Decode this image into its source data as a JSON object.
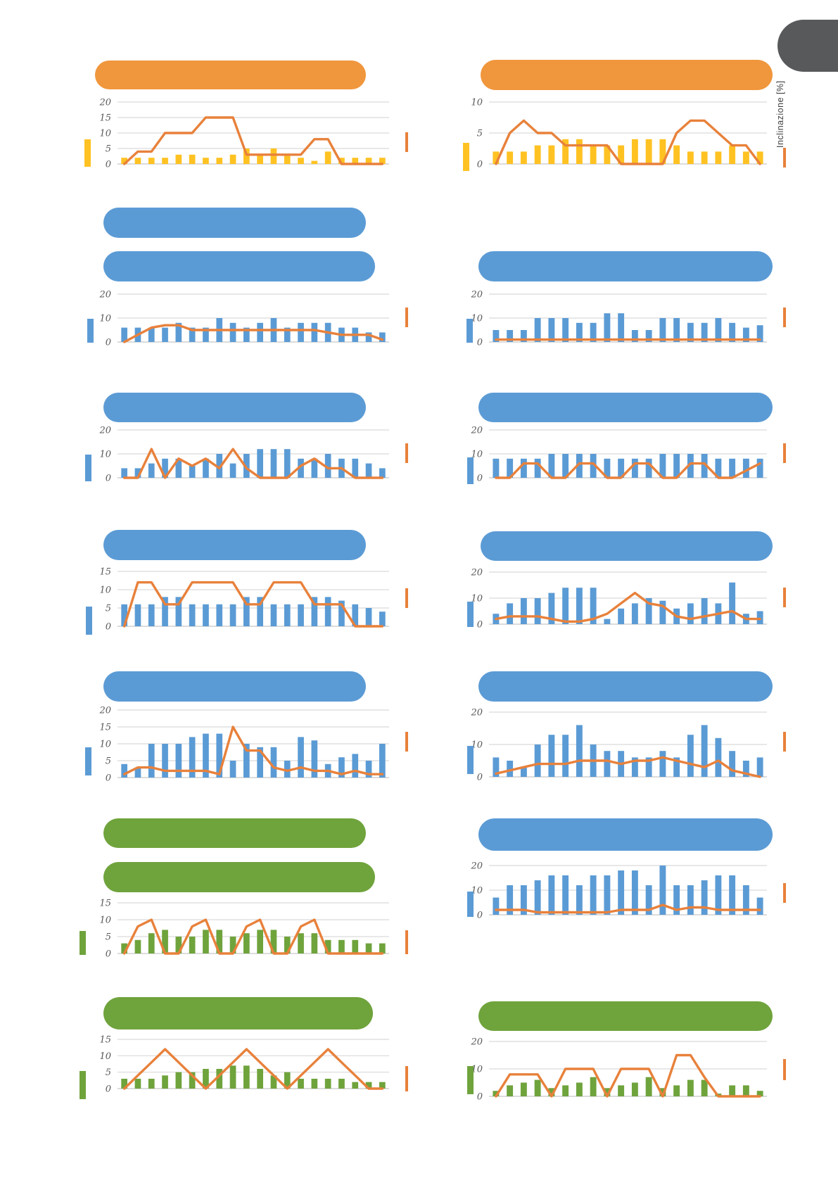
{
  "document": {
    "right_axis_label": "Inclinazione [%]",
    "note_header_pills_are_blank": true
  },
  "palette": {
    "orange_line": "#E8813B",
    "pill_orange": "#F0963C",
    "yellow": "#FFC222",
    "blue": "#5B9BD5",
    "green": "#6FA33C",
    "pill_blue": "#5B9BD5",
    "pill_green": "#6FA33C",
    "grid": "#D9D9D9",
    "grid_zero": "#C6C6C6",
    "axis_text": "#595959",
    "tab_gray": "#58595B",
    "page_bg": "#FFFFFF"
  },
  "chart_data": [
    {
      "id": "profile-r1-left",
      "type": "bar+line",
      "title": "",
      "header_pills": [
        "orange"
      ],
      "bar_color": "yellow",
      "ylim": [
        0,
        20
      ],
      "yticks": [
        20,
        15,
        10,
        5,
        0
      ],
      "grid": true,
      "series": [
        {
          "name": "bars",
          "type": "bar",
          "values": [
            2,
            2,
            2,
            2,
            3,
            3,
            2,
            2,
            3,
            5,
            3,
            5,
            3,
            2,
            1,
            4,
            2,
            2,
            2,
            2
          ]
        },
        {
          "name": "inclinazione",
          "type": "line",
          "values": [
            0,
            4,
            4,
            10,
            10,
            10,
            15,
            15,
            15,
            3,
            3,
            3,
            3,
            3,
            8,
            8,
            0,
            0,
            0,
            0
          ]
        }
      ]
    },
    {
      "id": "profile-r1-right",
      "type": "bar+line",
      "title": "",
      "header_pills": [
        "orange"
      ],
      "bar_color": "yellow",
      "ylim": [
        0,
        10
      ],
      "yticks": [
        10,
        5,
        0
      ],
      "grid": true,
      "series": [
        {
          "name": "bars",
          "type": "bar",
          "values": [
            2,
            2,
            2,
            3,
            3,
            4,
            4,
            3,
            3,
            3,
            4,
            4,
            4,
            3,
            2,
            2,
            2,
            3,
            2,
            2
          ]
        },
        {
          "name": "inclinazione",
          "type": "line",
          "values": [
            0,
            5,
            7,
            5,
            5,
            3,
            3,
            3,
            3,
            0,
            0,
            0,
            0,
            5,
            7,
            7,
            5,
            3,
            3,
            0
          ]
        }
      ]
    },
    {
      "id": "profile-r2-left",
      "type": "bar+line",
      "title": "",
      "header_pills": [
        "blue",
        "blue"
      ],
      "bar_color": "blue",
      "ylim": [
        0,
        20
      ],
      "yticks": [
        20,
        10,
        0
      ],
      "grid": true,
      "series": [
        {
          "name": "bars",
          "type": "bar",
          "values": [
            6,
            6,
            6,
            6,
            8,
            6,
            6,
            10,
            8,
            6,
            8,
            10,
            6,
            8,
            8,
            8,
            6,
            6,
            4,
            4
          ]
        },
        {
          "name": "inclinazione",
          "type": "line",
          "values": [
            0,
            3,
            6,
            7,
            7,
            5,
            5,
            5,
            5,
            5,
            5,
            5,
            5,
            5,
            5,
            4,
            3,
            3,
            3,
            1
          ]
        }
      ]
    },
    {
      "id": "profile-r2-right",
      "type": "bar+line",
      "title": "",
      "header_pills": [
        "blue"
      ],
      "bar_color": "blue",
      "ylim": [
        0,
        20
      ],
      "yticks": [
        20,
        10,
        0
      ],
      "grid": true,
      "series": [
        {
          "name": "bars",
          "type": "bar",
          "values": [
            5,
            5,
            5,
            10,
            10,
            10,
            8,
            8,
            12,
            12,
            5,
            5,
            10,
            10,
            8,
            8,
            10,
            8,
            6,
            7
          ]
        },
        {
          "name": "inclinazione",
          "type": "line",
          "values": [
            1,
            1,
            1,
            1,
            1,
            1,
            1,
            1,
            1,
            1,
            1,
            1,
            1,
            1,
            1,
            1,
            1,
            1,
            1,
            1
          ]
        }
      ]
    },
    {
      "id": "profile-r3-left",
      "type": "bar+line",
      "title": "",
      "header_pills": [
        "blue"
      ],
      "bar_color": "blue",
      "ylim": [
        0,
        20
      ],
      "yticks": [
        20,
        10,
        0
      ],
      "grid": true,
      "series": [
        {
          "name": "bars",
          "type": "bar",
          "values": [
            4,
            4,
            6,
            8,
            8,
            5,
            8,
            10,
            6,
            10,
            12,
            12,
            12,
            8,
            8,
            10,
            8,
            8,
            6,
            4
          ]
        },
        {
          "name": "inclinazione",
          "type": "line",
          "values": [
            0,
            0,
            12,
            0,
            8,
            5,
            8,
            4,
            12,
            4,
            0,
            0,
            0,
            5,
            8,
            4,
            4,
            0,
            0,
            0
          ]
        }
      ]
    },
    {
      "id": "profile-r3-right",
      "type": "bar+line",
      "title": "",
      "header_pills": [
        "blue"
      ],
      "bar_color": "blue",
      "ylim": [
        0,
        20
      ],
      "yticks": [
        20,
        10,
        0
      ],
      "grid": true,
      "series": [
        {
          "name": "bars",
          "type": "bar",
          "values": [
            8,
            8,
            8,
            8,
            10,
            10,
            10,
            10,
            8,
            8,
            8,
            8,
            10,
            10,
            10,
            10,
            8,
            8,
            8,
            8
          ]
        },
        {
          "name": "inclinazione",
          "type": "line",
          "values": [
            0,
            0,
            6,
            6,
            0,
            0,
            6,
            6,
            0,
            0,
            6,
            6,
            0,
            0,
            6,
            6,
            0,
            0,
            3,
            6
          ]
        }
      ]
    },
    {
      "id": "profile-r4-left",
      "type": "bar+line",
      "title": "",
      "header_pills": [
        "blue"
      ],
      "bar_color": "blue",
      "ylim": [
        0,
        15
      ],
      "yticks": [
        15,
        10,
        5,
        0
      ],
      "grid": true,
      "series": [
        {
          "name": "bars",
          "type": "bar",
          "values": [
            6,
            6,
            6,
            8,
            8,
            6,
            6,
            6,
            6,
            8,
            8,
            6,
            6,
            6,
            8,
            8,
            7,
            6,
            5,
            4
          ]
        },
        {
          "name": "inclinazione",
          "type": "line",
          "values": [
            0,
            12,
            12,
            6,
            6,
            12,
            12,
            12,
            12,
            6,
            6,
            12,
            12,
            12,
            6,
            6,
            6,
            0,
            0,
            0
          ]
        }
      ]
    },
    {
      "id": "profile-r4-right",
      "type": "bar+line",
      "title": "",
      "header_pills": [
        "blue"
      ],
      "bar_color": "blue",
      "ylim": [
        0,
        20
      ],
      "yticks": [
        20,
        10,
        0
      ],
      "grid": true,
      "series": [
        {
          "name": "bars",
          "type": "bar",
          "values": [
            4,
            8,
            10,
            10,
            12,
            14,
            14,
            14,
            2,
            6,
            8,
            10,
            9,
            6,
            8,
            10,
            8,
            16,
            4,
            5
          ]
        },
        {
          "name": "inclinazione",
          "type": "line",
          "values": [
            2,
            3,
            3,
            3,
            2,
            1,
            1,
            2,
            4,
            8,
            12,
            8,
            7,
            3,
            2,
            3,
            4,
            5,
            2,
            2
          ]
        }
      ]
    },
    {
      "id": "profile-r5-left",
      "type": "bar+line",
      "title": "",
      "header_pills": [
        "blue"
      ],
      "bar_color": "blue",
      "ylim": [
        0,
        20
      ],
      "yticks": [
        20,
        15,
        10,
        5,
        0
      ],
      "grid": true,
      "series": [
        {
          "name": "bars",
          "type": "bar",
          "values": [
            4,
            3,
            10,
            10,
            10,
            12,
            13,
            13,
            5,
            10,
            9,
            9,
            5,
            12,
            11,
            4,
            6,
            7,
            5,
            10
          ]
        },
        {
          "name": "inclinazione",
          "type": "line",
          "values": [
            1,
            3,
            3,
            2,
            2,
            2,
            2,
            1,
            15,
            8,
            8,
            3,
            2,
            3,
            2,
            2,
            1,
            2,
            1,
            1
          ]
        }
      ]
    },
    {
      "id": "profile-r5-right",
      "type": "bar+line",
      "title": "",
      "header_pills": [
        "blue"
      ],
      "bar_color": "blue",
      "ylim": [
        0,
        20
      ],
      "yticks": [
        20,
        10,
        0
      ],
      "grid": true,
      "series": [
        {
          "name": "bars",
          "type": "bar",
          "values": [
            6,
            5,
            3,
            10,
            13,
            13,
            16,
            10,
            8,
            8,
            6,
            6,
            8,
            6,
            13,
            16,
            12,
            8,
            5,
            6
          ]
        },
        {
          "name": "inclinazione",
          "type": "line",
          "values": [
            1,
            2,
            3,
            4,
            4,
            4,
            5,
            5,
            5,
            4,
            5,
            5,
            6,
            5,
            4,
            3,
            5,
            2,
            1,
            0
          ]
        }
      ]
    },
    {
      "id": "profile-r6-left",
      "type": "bar+line",
      "title": "",
      "header_pills": [
        "green",
        "green"
      ],
      "bar_color": "green",
      "ylim": [
        0,
        15
      ],
      "yticks": [
        15,
        10,
        5,
        0
      ],
      "grid": true,
      "series": [
        {
          "name": "bars",
          "type": "bar",
          "values": [
            3,
            4,
            6,
            7,
            5,
            5,
            7,
            7,
            5,
            6,
            7,
            7,
            5,
            6,
            6,
            4,
            4,
            4,
            3,
            3
          ]
        },
        {
          "name": "inclinazione",
          "type": "line",
          "values": [
            0,
            8,
            10,
            0,
            0,
            8,
            10,
            0,
            0,
            8,
            10,
            0,
            0,
            8,
            10,
            0,
            0,
            0,
            0,
            0
          ]
        }
      ]
    },
    {
      "id": "profile-r6-right",
      "type": "bar+line",
      "title": "",
      "header_pills": [
        "blue"
      ],
      "bar_color": "blue",
      "ylim": [
        0,
        20
      ],
      "yticks": [
        20,
        10,
        0
      ],
      "grid": true,
      "series": [
        {
          "name": "bars",
          "type": "bar",
          "values": [
            7,
            12,
            12,
            14,
            16,
            16,
            12,
            16,
            16,
            18,
            18,
            12,
            20,
            12,
            12,
            14,
            16,
            16,
            12,
            7
          ]
        },
        {
          "name": "inclinazione",
          "type": "line",
          "values": [
            2,
            2,
            2,
            1,
            1,
            1,
            1,
            1,
            1,
            2,
            2,
            2,
            4,
            2,
            3,
            3,
            2,
            2,
            2,
            2
          ]
        }
      ]
    },
    {
      "id": "profile-r7-left",
      "type": "bar+line",
      "title": "",
      "header_pills": [
        "green"
      ],
      "bar_color": "green",
      "ylim": [
        0,
        15
      ],
      "yticks": [
        15,
        10,
        5,
        0
      ],
      "grid": true,
      "series": [
        {
          "name": "bars",
          "type": "bar",
          "values": [
            3,
            3,
            3,
            4,
            5,
            5,
            6,
            6,
            7,
            7,
            6,
            4,
            5,
            3,
            3,
            3,
            3,
            2,
            2,
            2
          ]
        },
        {
          "name": "inclinazione",
          "type": "line",
          "values": [
            0,
            4,
            8,
            12,
            8,
            4,
            0,
            4,
            8,
            12,
            8,
            4,
            0,
            4,
            8,
            12,
            8,
            4,
            0,
            0
          ]
        }
      ]
    },
    {
      "id": "profile-r7-right",
      "type": "bar+line",
      "title": "",
      "header_pills": [
        "green"
      ],
      "bar_color": "green",
      "ylim": [
        0,
        20
      ],
      "yticks": [
        20,
        10,
        0
      ],
      "grid": true,
      "series": [
        {
          "name": "bars",
          "type": "bar",
          "values": [
            2,
            4,
            5,
            6,
            3,
            4,
            5,
            7,
            3,
            4,
            5,
            7,
            3,
            4,
            6,
            6,
            1,
            4,
            4,
            2
          ]
        },
        {
          "name": "inclinazione",
          "type": "line",
          "values": [
            0,
            8,
            8,
            8,
            0,
            10,
            10,
            10,
            0,
            10,
            10,
            10,
            0,
            15,
            15,
            7,
            0,
            0,
            0,
            0
          ]
        }
      ]
    }
  ]
}
